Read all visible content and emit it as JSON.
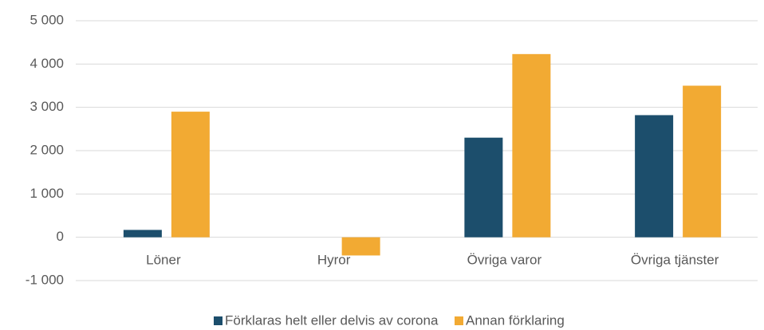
{
  "chart_data": {
    "type": "bar",
    "categories": [
      "Löner",
      "Hyror",
      "Övriga varor",
      "Övriga tjänster"
    ],
    "series": [
      {
        "name": "Förklaras helt eller delvis av corona",
        "color": "#1c4e6c",
        "values": [
          170,
          0,
          2300,
          2820
        ]
      },
      {
        "name": "Annan förklaring",
        "color": "#f2aa33",
        "values": [
          2900,
          -420,
          4230,
          3500
        ]
      }
    ],
    "ylim": [
      -1000,
      5000
    ],
    "yticks": [
      {
        "value": -1000,
        "label": "-1 000"
      },
      0,
      {
        "value": 1000,
        "label": "1 000"
      },
      {
        "value": 2000,
        "label": "2 000"
      },
      {
        "value": 3000,
        "label": "3 000"
      },
      {
        "value": 4000,
        "label": "4 000"
      },
      {
        "value": 5000,
        "label": "5 000"
      }
    ],
    "grid": true,
    "legend": "bottom"
  }
}
